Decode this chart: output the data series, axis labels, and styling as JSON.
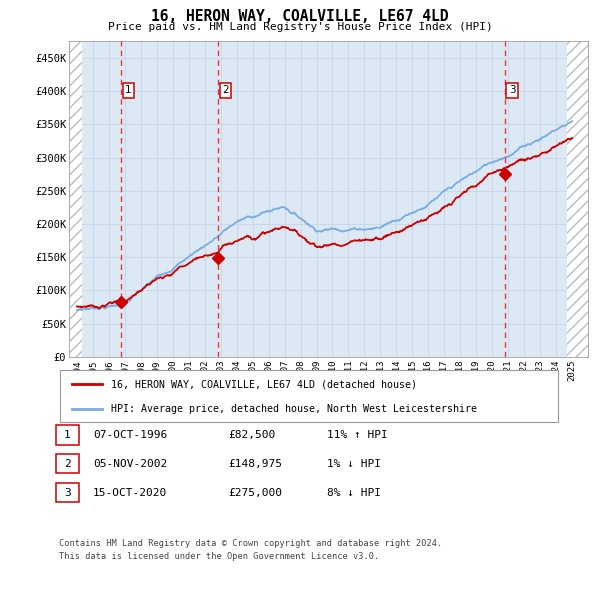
{
  "title": "16, HERON WAY, COALVILLE, LE67 4LD",
  "subtitle": "Price paid vs. HM Land Registry's House Price Index (HPI)",
  "sale_label": "16, HERON WAY, COALVILLE, LE67 4LD (detached house)",
  "hpi_label": "HPI: Average price, detached house, North West Leicestershire",
  "sales": [
    {
      "label": 1,
      "date_x": 1996.77,
      "price": 82500,
      "date_str": "07-OCT-1996",
      "pct": "11%",
      "dir": "↑"
    },
    {
      "label": 2,
      "date_x": 2002.84,
      "price": 148975,
      "date_str": "05-NOV-2002",
      "pct": "1%",
      "dir": "↓"
    },
    {
      "label": 3,
      "date_x": 2020.79,
      "price": 275000,
      "date_str": "15-OCT-2020",
      "pct": "8%",
      "dir": "↓"
    }
  ],
  "ylim": [
    0,
    475000
  ],
  "yticks": [
    0,
    50000,
    100000,
    150000,
    200000,
    250000,
    300000,
    350000,
    400000,
    450000
  ],
  "xlim": [
    1993.5,
    2026.0
  ],
  "xticks": [
    1994,
    1995,
    1996,
    1997,
    1998,
    1999,
    2000,
    2001,
    2002,
    2003,
    2004,
    2005,
    2006,
    2007,
    2008,
    2009,
    2010,
    2011,
    2012,
    2013,
    2014,
    2015,
    2016,
    2017,
    2018,
    2019,
    2020,
    2021,
    2022,
    2023,
    2024,
    2025
  ],
  "sale_color": "#cc0000",
  "hpi_color": "#7aade0",
  "dashed_color": "#ee3333",
  "grid_color": "#c8d8e8",
  "bg_color": "#dce9f5",
  "footnote1": "Contains HM Land Registry data © Crown copyright and database right 2024.",
  "footnote2": "This data is licensed under the Open Government Licence v3.0."
}
